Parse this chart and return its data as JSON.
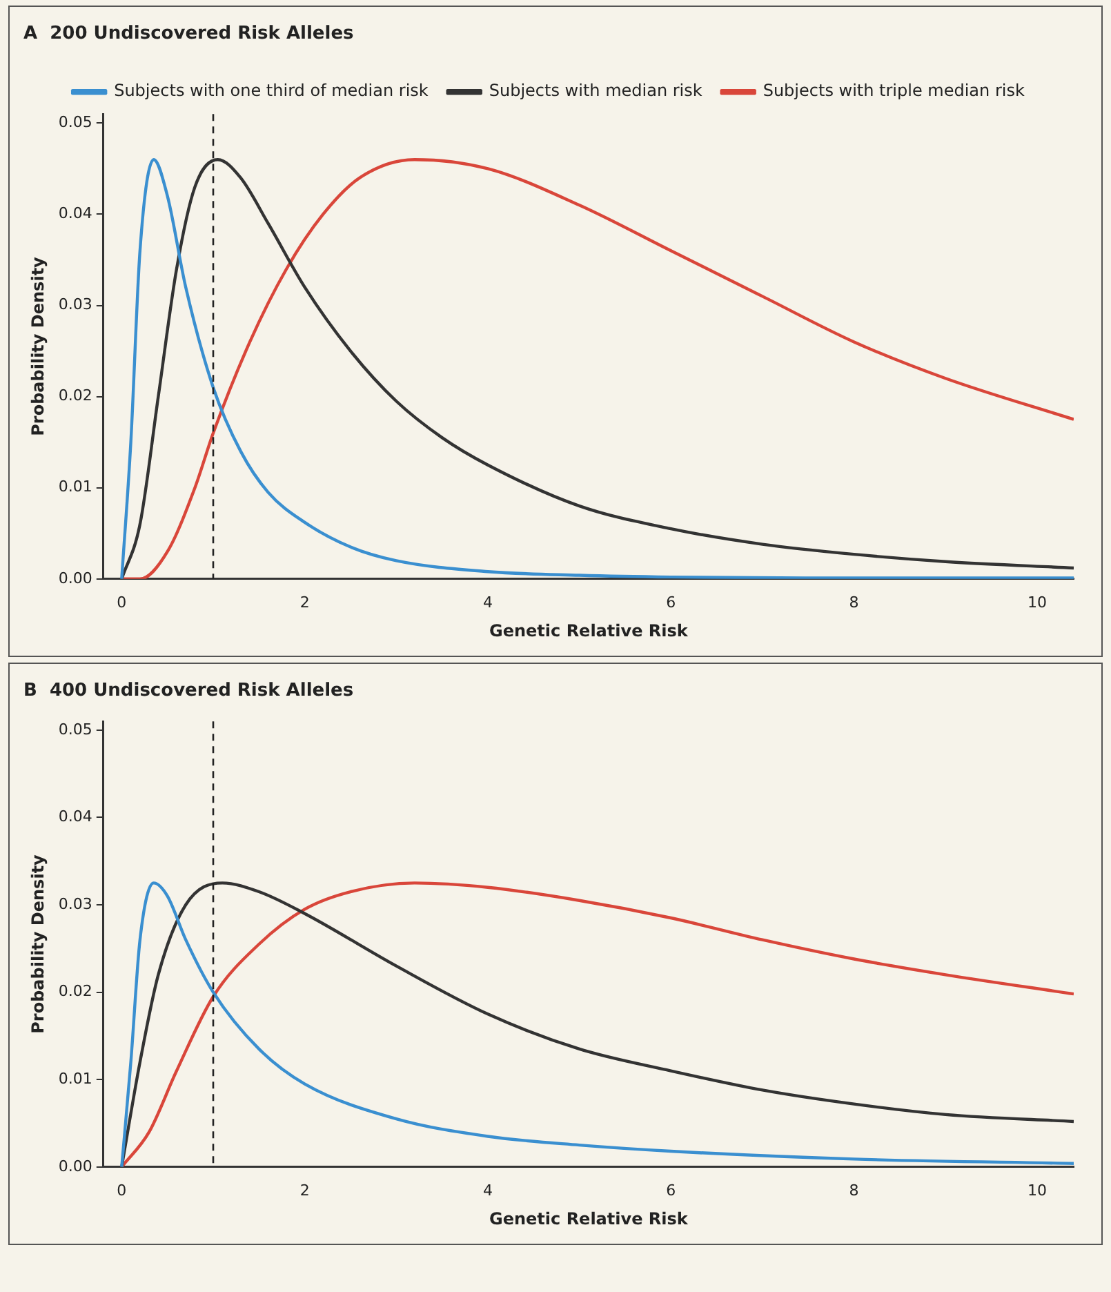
{
  "chart_data": [
    {
      "type": "line",
      "title": "A  200 Undiscovered Risk Alleles",
      "xlabel": "Genetic Relative Risk",
      "ylabel": "Probability Density",
      "xlim": [
        -0.2,
        10.4
      ],
      "ylim": [
        0,
        0.051
      ],
      "xticks": [
        0,
        2,
        4,
        6,
        8,
        10
      ],
      "yticks": [
        {
          "value": 0,
          "label": "0.00"
        },
        {
          "value": 0.01,
          "label": "0.01"
        },
        {
          "value": 0.02,
          "label": "0.02"
        },
        {
          "value": 0.03,
          "label": "0.03"
        },
        {
          "value": 0.04,
          "label": "0.04"
        },
        {
          "value": 0.05,
          "label": "0.05"
        }
      ],
      "grid": false,
      "legend": "top",
      "marker": "none",
      "line_style": "solid",
      "ref_lines": [
        {
          "axis": "x",
          "value": 1,
          "label": null,
          "line_style": "dashed",
          "color": "#222222"
        }
      ],
      "series": [
        {
          "name": "Subjects with one third of median risk",
          "color": "#3a8fd0",
          "x": [
            0,
            0.1,
            0.2,
            0.35,
            0.5,
            0.7,
            1,
            1.3,
            1.6,
            2,
            2.5,
            3,
            4,
            5,
            6,
            8,
            10.4
          ],
          "values": [
            0,
            0.015,
            0.036,
            0.046,
            0.042,
            0.032,
            0.021,
            0.014,
            0.0095,
            0.0062,
            0.0035,
            0.002,
            0.0008,
            0.0004,
            0.0002,
            0.0001,
            0.0001
          ]
        },
        {
          "name": "Subjects with median risk",
          "color": "#333333",
          "x": [
            0,
            0.2,
            0.4,
            0.6,
            0.8,
            1.05,
            1.3,
            1.6,
            2,
            2.5,
            3,
            3.5,
            4,
            5,
            6,
            7,
            8,
            9,
            10.4
          ],
          "values": [
            0,
            0.006,
            0.02,
            0.034,
            0.043,
            0.046,
            0.044,
            0.039,
            0.032,
            0.025,
            0.0195,
            0.0155,
            0.0125,
            0.008,
            0.0055,
            0.0038,
            0.0027,
            0.0019,
            0.0012
          ]
        },
        {
          "name": "Subjects with triple median risk",
          "color": "#d9463a",
          "x": [
            0,
            0.2,
            0.5,
            0.8,
            1,
            1.4,
            1.8,
            2.2,
            2.6,
            3.2,
            4,
            5,
            6,
            7,
            8,
            9,
            10.4
          ],
          "values": [
            0,
            0,
            0.003,
            0.01,
            0.016,
            0.026,
            0.034,
            0.04,
            0.044,
            0.046,
            0.045,
            0.041,
            0.036,
            0.031,
            0.026,
            0.022,
            0.0175
          ]
        }
      ]
    },
    {
      "type": "line",
      "title": "B  400 Undiscovered Risk Alleles",
      "xlabel": "Genetic Relative Risk",
      "ylabel": "Probability Density",
      "xlim": [
        -0.2,
        10.4
      ],
      "ylim": [
        0,
        0.051
      ],
      "xticks": [
        0,
        2,
        4,
        6,
        8,
        10
      ],
      "yticks": [
        {
          "value": 0,
          "label": "0.00"
        },
        {
          "value": 0.01,
          "label": "0.01"
        },
        {
          "value": 0.02,
          "label": "0.02"
        },
        {
          "value": 0.03,
          "label": "0.03"
        },
        {
          "value": 0.04,
          "label": "0.04"
        },
        {
          "value": 0.05,
          "label": "0.05"
        }
      ],
      "grid": false,
      "marker": "none",
      "line_style": "solid",
      "ref_lines": [
        {
          "axis": "x",
          "value": 1,
          "label": null,
          "line_style": "dashed",
          "color": "#222222"
        }
      ],
      "series": [
        {
          "color": "#3a8fd0",
          "x": [
            0,
            0.1,
            0.2,
            0.35,
            0.5,
            0.7,
            1,
            1.5,
            2,
            3,
            4,
            5,
            6,
            8,
            10.4
          ],
          "values": [
            0,
            0.012,
            0.026,
            0.0325,
            0.031,
            0.026,
            0.02,
            0.0135,
            0.0095,
            0.0055,
            0.0035,
            0.0025,
            0.0018,
            0.0009,
            0.0004
          ]
        },
        {
          "color": "#333333",
          "x": [
            0,
            0.2,
            0.4,
            0.7,
            1.1,
            1.5,
            2,
            3,
            4,
            5,
            6,
            7,
            8,
            9,
            10.4
          ],
          "values": [
            0,
            0.012,
            0.022,
            0.03,
            0.0325,
            0.0315,
            0.029,
            0.023,
            0.0175,
            0.0135,
            0.011,
            0.0088,
            0.0072,
            0.006,
            0.0052
          ]
        },
        {
          "color": "#d9463a",
          "x": [
            0,
            0.3,
            0.6,
            1,
            1.5,
            2,
            2.5,
            3.2,
            4,
            5,
            6,
            7,
            8,
            9,
            10.4
          ],
          "values": [
            0,
            0.004,
            0.011,
            0.0195,
            0.0255,
            0.0295,
            0.0315,
            0.0325,
            0.032,
            0.0305,
            0.0285,
            0.026,
            0.0238,
            0.022,
            0.0198
          ]
        }
      ]
    }
  ]
}
